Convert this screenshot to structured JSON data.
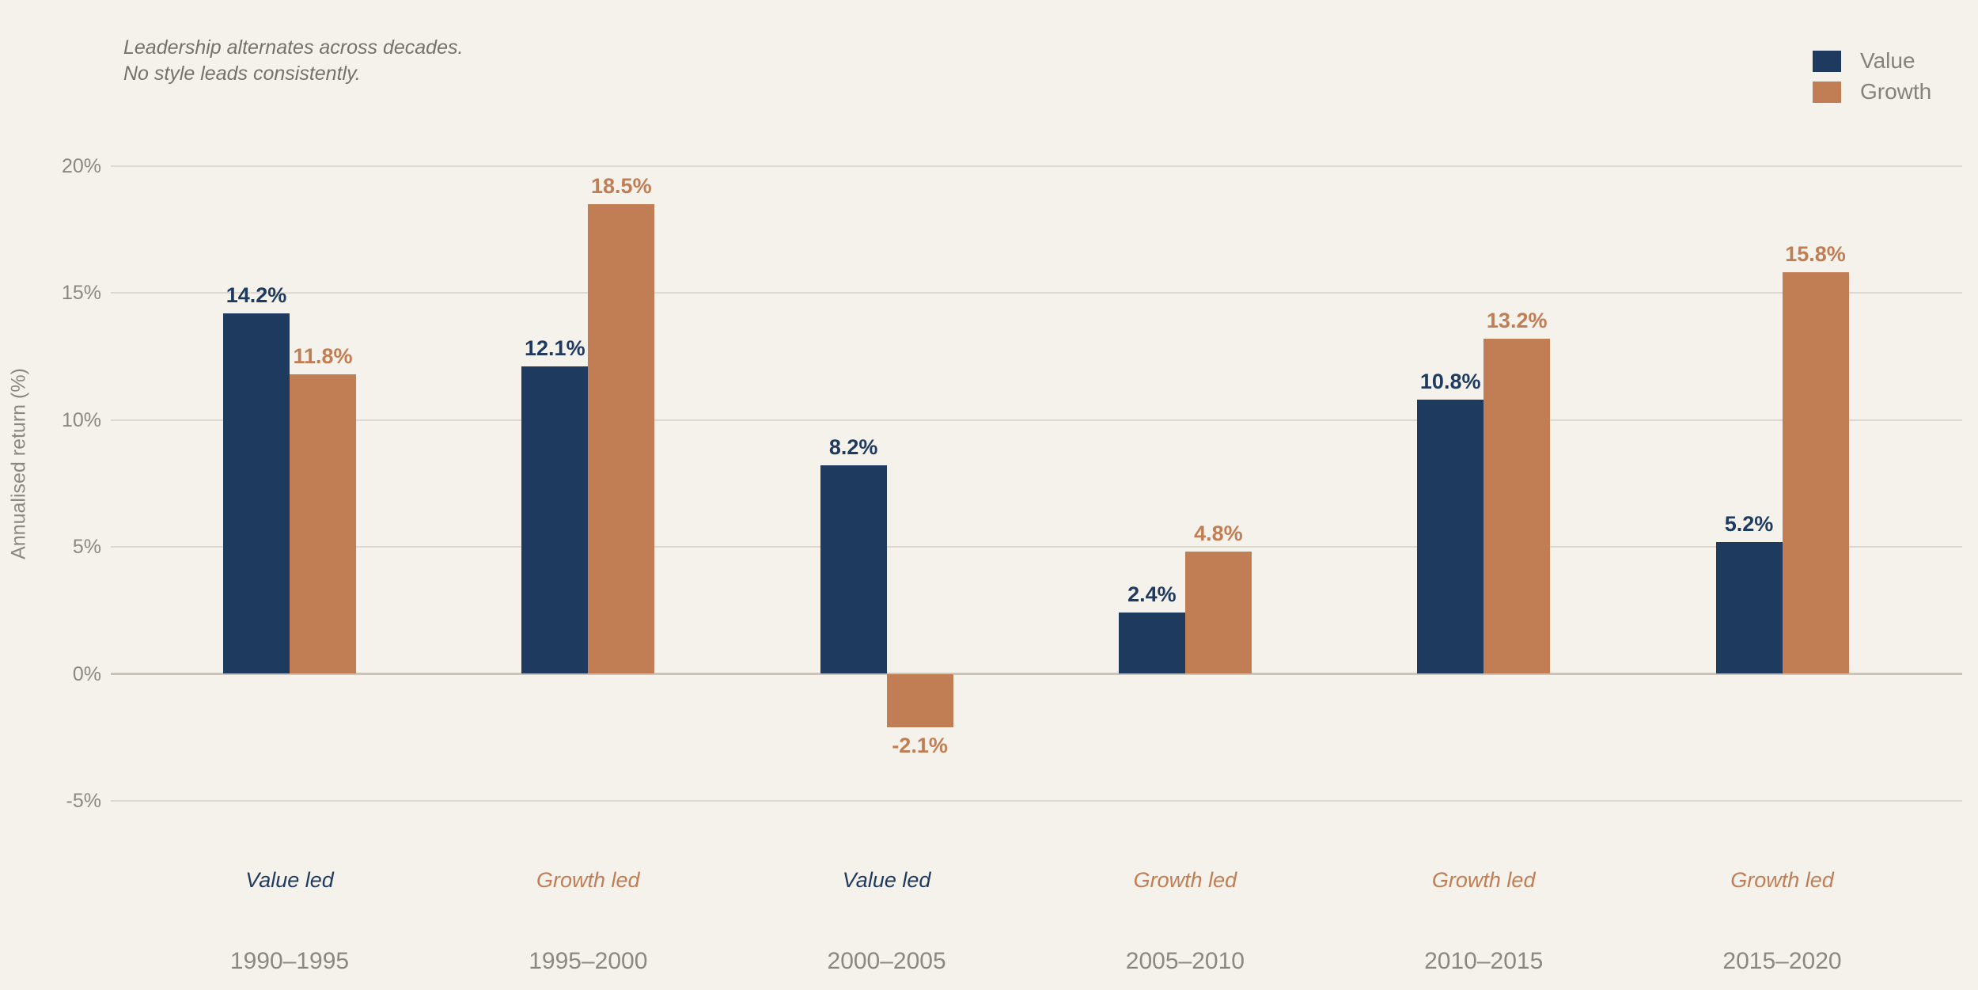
{
  "palette": {
    "background": "#f5f2ec",
    "grid": "#ddd9d0",
    "zero_line": "#c9c3ba",
    "axis_text": "#8b897f",
    "annotation_text": "#74736b",
    "legend_text": "#84827a",
    "value_color": "#1f3a5f",
    "growth_color": "#c17d54"
  },
  "annotation": {
    "line1": "Leadership alternates across decades.",
    "line2": "No style leads consistently."
  },
  "legend": {
    "items": [
      {
        "label": "Value",
        "color": "#1f3a5f"
      },
      {
        "label": "Growth",
        "color": "#c17d54"
      }
    ]
  },
  "chart_data": {
    "type": "bar",
    "title": "",
    "ylabel": "Annualised return (%)",
    "yticks_percent": [
      20,
      15,
      10,
      5,
      0,
      -5
    ],
    "ylim": [
      -7.5,
      22.5
    ],
    "grid": true,
    "legend_position": "top-right",
    "categories": [
      "1990–1995",
      "1995–2000",
      "2000–2005",
      "2005–2010",
      "2010–2015",
      "2015–2020"
    ],
    "series": [
      {
        "name": "Value",
        "color": "#1f3a5f",
        "values": [
          14.2,
          12.1,
          8.2,
          2.4,
          10.8,
          5.2
        ]
      },
      {
        "name": "Growth",
        "color": "#c17d54",
        "values": [
          11.8,
          18.5,
          -2.1,
          4.8,
          13.2,
          15.8
        ]
      }
    ],
    "value_label_suffix": "%",
    "leaders": [
      {
        "label": "Value led",
        "style": "Value"
      },
      {
        "label": "Growth led",
        "style": "Growth"
      },
      {
        "label": "Value led",
        "style": "Value"
      },
      {
        "label": "Growth led",
        "style": "Growth"
      },
      {
        "label": "Growth led",
        "style": "Growth"
      },
      {
        "label": "Growth led",
        "style": "Growth"
      }
    ]
  }
}
